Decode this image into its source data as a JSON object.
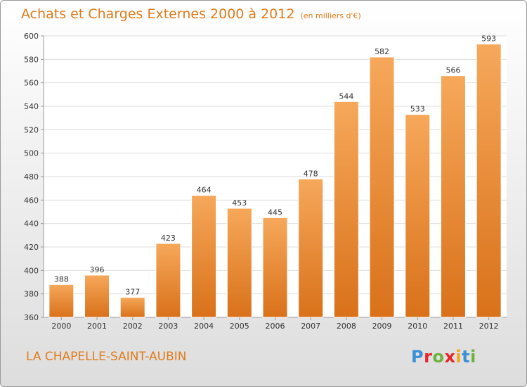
{
  "header": {
    "title": "Achats et Charges Externes 2000 à 2012",
    "unit": "(en milliers d'€)"
  },
  "footer": {
    "location": "LA CHAPELLE-SAINT-AUBIN",
    "logo_letters": [
      "P",
      "r",
      "o",
      "x",
      "i",
      "t",
      "i"
    ],
    "logo_colors": [
      "#3a8fd6",
      "#e8262a",
      "#6cb33e",
      "#e8262a",
      "#f2a51a",
      "#3a8fd6",
      "#6cb33e"
    ]
  },
  "colors": {
    "title": "#e07b1b",
    "bar_light": "#f6a85a",
    "bar_dark": "#d9711a",
    "grid": "#dddddd",
    "axis": "#999999"
  },
  "chart_data": {
    "type": "bar",
    "title": "Achats et Charges Externes 2000 à 2012",
    "subtitle": "(en milliers d'€)",
    "categories": [
      "2000",
      "2001",
      "2002",
      "2003",
      "2004",
      "2005",
      "2006",
      "2007",
      "2008",
      "2009",
      "2010",
      "2011",
      "2012"
    ],
    "values": [
      388,
      396,
      377,
      423,
      464,
      453,
      445,
      478,
      544,
      582,
      533,
      566,
      593
    ],
    "ylim": [
      360,
      600
    ],
    "yticks": [
      360,
      380,
      400,
      420,
      440,
      460,
      480,
      500,
      520,
      540,
      560,
      580,
      600
    ],
    "grid": true,
    "xlabel": "",
    "ylabel": ""
  }
}
